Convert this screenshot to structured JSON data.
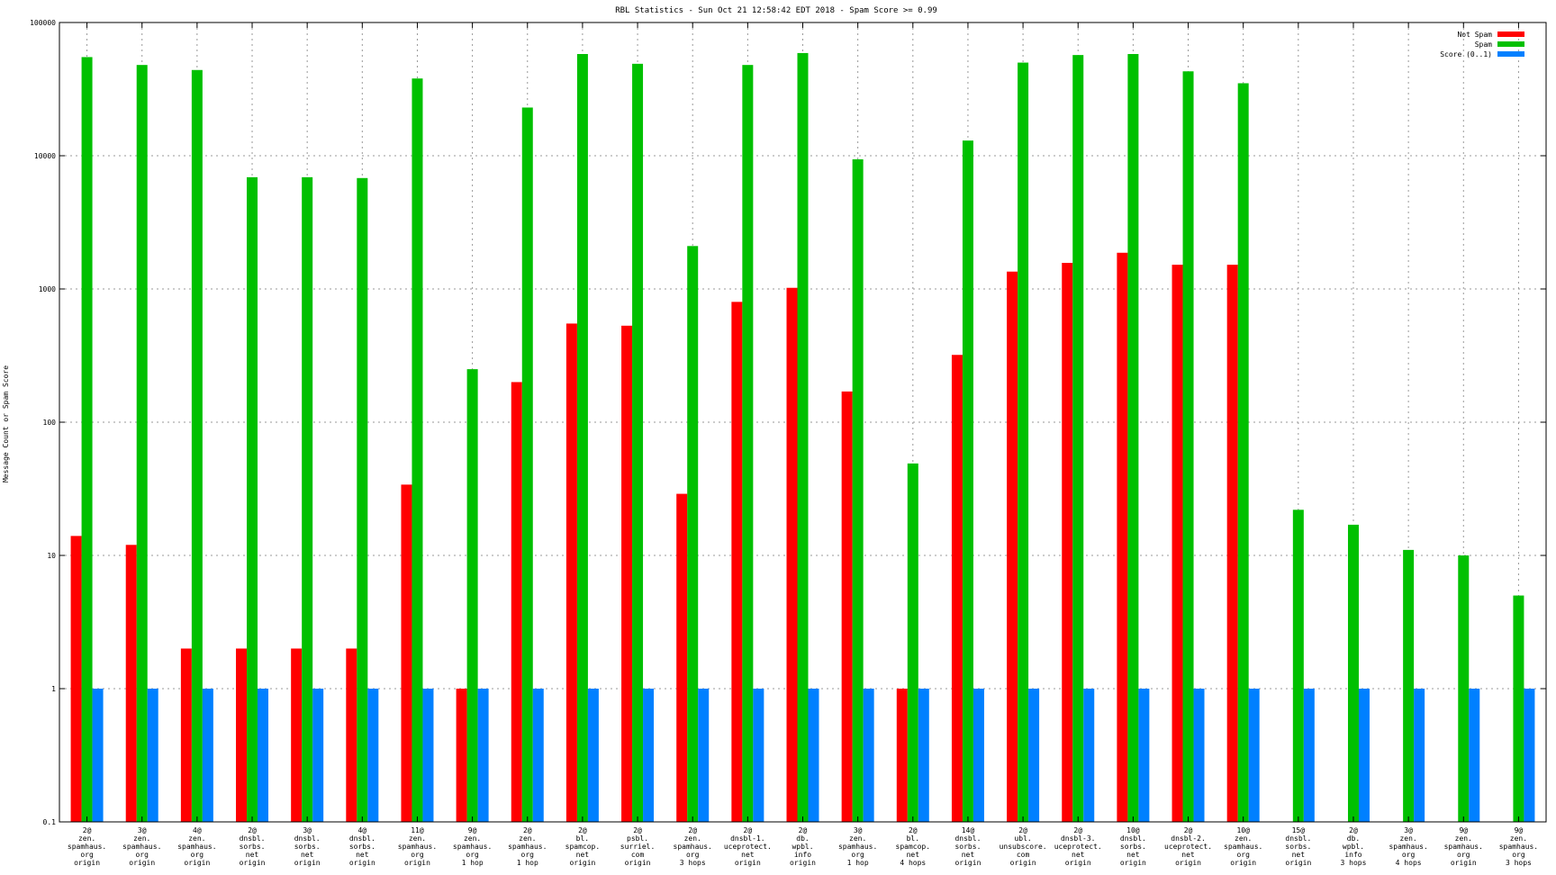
{
  "chart_data": {
    "type": "bar",
    "title": "RBL Statistics - Sun Oct 21 12:58:42 EDT 2018 - Spam Score >= 0.99",
    "ylabel": "Message Count or Spam Score",
    "xlabel": "",
    "yscale": "log",
    "ylim": [
      0.1,
      100000
    ],
    "yticks": [
      {
        "value": 0.1,
        "label": "0.1"
      },
      {
        "value": 1,
        "label": "1"
      },
      {
        "value": 10,
        "label": "10"
      },
      {
        "value": 100,
        "label": "100"
      },
      {
        "value": 1000,
        "label": "1000"
      },
      {
        "value": 10000,
        "label": "10000"
      },
      {
        "value": 100000,
        "label": "100000"
      }
    ],
    "grid": true,
    "legend_position": "top-right",
    "categories": [
      [
        "2@",
        "zen.",
        "spamhaus.",
        "org",
        "origin"
      ],
      [
        "3@",
        "zen.",
        "spamhaus.",
        "org",
        "origin"
      ],
      [
        "4@",
        "zen.",
        "spamhaus.",
        "org",
        "origin"
      ],
      [
        "2@",
        "dnsbl.",
        "sorbs.",
        "net",
        "origin"
      ],
      [
        "3@",
        "dnsbl.",
        "sorbs.",
        "net",
        "origin"
      ],
      [
        "4@",
        "dnsbl.",
        "sorbs.",
        "net",
        "origin"
      ],
      [
        "11@",
        "zen.",
        "spamhaus.",
        "org",
        "origin"
      ],
      [
        "9@",
        "zen.",
        "spamhaus.",
        "org",
        "1 hop"
      ],
      [
        "2@",
        "zen.",
        "spamhaus.",
        "org",
        "1 hop"
      ],
      [
        "2@",
        "bl.",
        "spamcop.",
        "net",
        "origin"
      ],
      [
        "2@",
        "psbl.",
        "surriel.",
        "com",
        "origin"
      ],
      [
        "2@",
        "zen.",
        "spamhaus.",
        "org",
        "3 hops"
      ],
      [
        "2@",
        "dnsbl-1.",
        "uceprotect.",
        "net",
        "origin"
      ],
      [
        "2@",
        "db.",
        "wpbl.",
        "info",
        "origin"
      ],
      [
        "3@",
        "zen.",
        "spamhaus.",
        "org",
        "1 hop"
      ],
      [
        "2@",
        "bl.",
        "spamcop.",
        "net",
        "4 hops"
      ],
      [
        "14@",
        "dnsbl.",
        "sorbs.",
        "net",
        "origin"
      ],
      [
        "2@",
        "ubl.",
        "unsubscore.",
        "com",
        "origin"
      ],
      [
        "2@",
        "dnsbl-3.",
        "uceprotect.",
        "net",
        "origin"
      ],
      [
        "10@",
        "dnsbl.",
        "sorbs.",
        "net",
        "origin"
      ],
      [
        "2@",
        "dnsbl-2.",
        "uceprotect.",
        "net",
        "origin"
      ],
      [
        "10@",
        "zen.",
        "spamhaus.",
        "org",
        "origin"
      ],
      [
        "15@",
        "dnsbl.",
        "sorbs.",
        "net",
        "origin"
      ],
      [
        "2@",
        "db.",
        "wpbl.",
        "info",
        "3 hops"
      ],
      [
        "3@",
        "zen.",
        "spamhaus.",
        "org",
        "4 hops"
      ],
      [
        "9@",
        "zen.",
        "spamhaus.",
        "org",
        "origin"
      ],
      [
        "9@",
        "zen.",
        "spamhaus.",
        "org",
        "3 hops"
      ]
    ],
    "series": [
      {
        "name": "Not Spam",
        "color": "#ff0000",
        "values": [
          14,
          12,
          2,
          2,
          2,
          2,
          34,
          1,
          200,
          550,
          530,
          29,
          800,
          1020,
          170,
          1,
          320,
          1350,
          1570,
          1870,
          1520,
          1520,
          null,
          null,
          null,
          null,
          null
        ]
      },
      {
        "name": "Spam",
        "color": "#00c000",
        "values": [
          55000,
          48000,
          44000,
          6900,
          6900,
          6800,
          38000,
          250,
          23000,
          58000,
          49000,
          2100,
          48000,
          59000,
          9400,
          49,
          13000,
          50000,
          57000,
          58000,
          43000,
          35000,
          22,
          17,
          11,
          10,
          5
        ]
      },
      {
        "name": "Score (0..1)",
        "color": "#0080ff",
        "values": [
          1,
          1,
          1,
          1,
          1,
          1,
          1,
          1,
          1,
          1,
          1,
          1,
          1,
          1,
          1,
          1,
          1,
          1,
          1,
          1,
          1,
          1,
          1,
          1,
          1,
          1,
          1
        ]
      }
    ]
  }
}
